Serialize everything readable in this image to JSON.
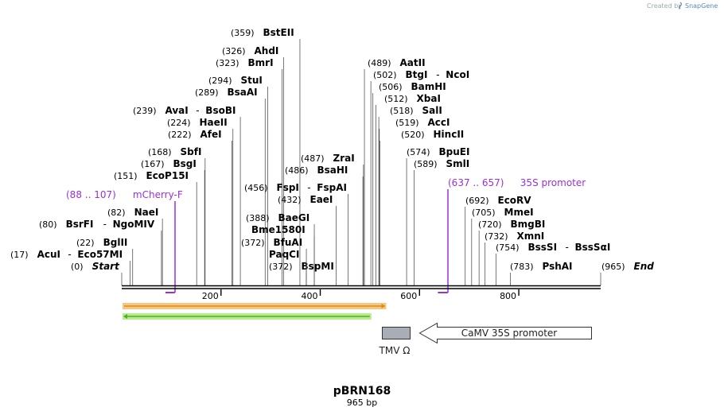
{
  "brand": {
    "created_by": "Created by",
    "app": "SnapGene"
  },
  "map": {
    "name": "pBRN168",
    "length_label": "965 bp",
    "length_bp": 965,
    "ticks": [
      "200",
      "400",
      "600",
      "800"
    ],
    "tick_values": [
      200,
      400,
      600,
      800
    ]
  },
  "sites": [
    {
      "pos": 0,
      "pos_label": "(0)",
      "names": [
        "Start"
      ],
      "italic": true
    },
    {
      "pos": 17,
      "pos_label": "(17)",
      "names": [
        "AcuI",
        "Eco57MI"
      ]
    },
    {
      "pos": 22,
      "pos_label": "(22)",
      "names": [
        "BglII"
      ]
    },
    {
      "pos": 80,
      "pos_label": "(80)",
      "names": [
        "BsrFI",
        "NgoMIV"
      ]
    },
    {
      "pos": 82,
      "pos_label": "(82)",
      "names": [
        "NaeI"
      ]
    },
    {
      "pos": 151,
      "pos_label": "(151)",
      "names": [
        "EcoP15I"
      ]
    },
    {
      "pos": 167,
      "pos_label": "(167)",
      "names": [
        "BsgI"
      ]
    },
    {
      "pos": 168,
      "pos_label": "(168)",
      "names": [
        "SbfI"
      ]
    },
    {
      "pos": 222,
      "pos_label": "(222)",
      "names": [
        "AfeI"
      ]
    },
    {
      "pos": 224,
      "pos_label": "(224)",
      "names": [
        "HaeII"
      ]
    },
    {
      "pos": 239,
      "pos_label": "(239)",
      "names": [
        "AvaI",
        "BsoBI"
      ]
    },
    {
      "pos": 289,
      "pos_label": "(289)",
      "names": [
        "BsaAI"
      ]
    },
    {
      "pos": 294,
      "pos_label": "(294)",
      "names": [
        "StuI"
      ]
    },
    {
      "pos": 323,
      "pos_label": "(323)",
      "names": [
        "BmrI"
      ]
    },
    {
      "pos": 326,
      "pos_label": "(326)",
      "names": [
        "AhdI"
      ]
    },
    {
      "pos": 359,
      "pos_label": "(359)",
      "names": [
        "BstEII"
      ]
    },
    {
      "pos": 372,
      "pos_label": "(372)",
      "names": [
        "BspMI"
      ]
    },
    {
      "pos": 372,
      "pos_label": "",
      "names": [
        "PaqCI"
      ]
    },
    {
      "pos": 372,
      "pos_label": "(372)",
      "names": [
        "BfuAI"
      ]
    },
    {
      "pos": 388,
      "pos_label": "",
      "names": [
        "Bme1580I"
      ]
    },
    {
      "pos": 388,
      "pos_label": "(388)",
      "names": [
        "BaeGI"
      ]
    },
    {
      "pos": 432,
      "pos_label": "(432)",
      "names": [
        "EaeI"
      ]
    },
    {
      "pos": 456,
      "pos_label": "(456)",
      "names": [
        "FspI",
        "FspAI"
      ]
    },
    {
      "pos": 486,
      "pos_label": "(486)",
      "names": [
        "BsaHI"
      ]
    },
    {
      "pos": 487,
      "pos_label": "(487)",
      "names": [
        "ZraI"
      ]
    },
    {
      "pos": 489,
      "pos_label": "(489)",
      "names": [
        "AatII"
      ]
    },
    {
      "pos": 502,
      "pos_label": "(502)",
      "names": [
        "BtgI",
        "NcoI"
      ]
    },
    {
      "pos": 506,
      "pos_label": "(506)",
      "names": [
        "BamHI"
      ]
    },
    {
      "pos": 512,
      "pos_label": "(512)",
      "names": [
        "XbaI"
      ]
    },
    {
      "pos": 518,
      "pos_label": "(518)",
      "names": [
        "SalI"
      ]
    },
    {
      "pos": 519,
      "pos_label": "(519)",
      "names": [
        "AccI"
      ]
    },
    {
      "pos": 520,
      "pos_label": "(520)",
      "names": [
        "HincII"
      ]
    },
    {
      "pos": 574,
      "pos_label": "(574)",
      "names": [
        "BpuEI"
      ]
    },
    {
      "pos": 589,
      "pos_label": "(589)",
      "names": [
        "SmlI"
      ]
    },
    {
      "pos": 692,
      "pos_label": "(692)",
      "names": [
        "EcoRV"
      ]
    },
    {
      "pos": 705,
      "pos_label": "(705)",
      "names": [
        "MmeI"
      ]
    },
    {
      "pos": 720,
      "pos_label": "(720)",
      "names": [
        "BmgBI"
      ]
    },
    {
      "pos": 732,
      "pos_label": "(732)",
      "names": [
        "XmnI"
      ]
    },
    {
      "pos": 754,
      "pos_label": "(754)",
      "names": [
        "BssSI",
        "BssSαI"
      ]
    },
    {
      "pos": 783,
      "pos_label": "(783)",
      "names": [
        "PshAI"
      ]
    },
    {
      "pos": 965,
      "pos_label": "(965)",
      "names": [
        "End"
      ],
      "italic": true
    }
  ],
  "primers": [
    {
      "range": "(88 .. 107)",
      "name": "mCherry-F",
      "start": 88,
      "end": 107,
      "color": "#9b30d9"
    },
    {
      "range": "(637 .. 657)",
      "name": "35S promoter",
      "start": 637,
      "end": 657,
      "color": "#9b30d9"
    }
  ],
  "features": [
    {
      "name": "TMV Ω",
      "start": 525,
      "end": 582,
      "color": "#a9adb5"
    },
    {
      "name": "CaMV 35S promoter",
      "start": 603,
      "end": 965,
      "color": "#ffffff"
    }
  ],
  "orfs": [
    {
      "start": 0,
      "end": 533,
      "direction": "forward",
      "fill": "#f6c782",
      "stroke": "#e08a10"
    },
    {
      "start": 0,
      "end": 503,
      "direction": "reverse",
      "fill": "#b8ea8e",
      "stroke": "#4fae2c"
    }
  ]
}
